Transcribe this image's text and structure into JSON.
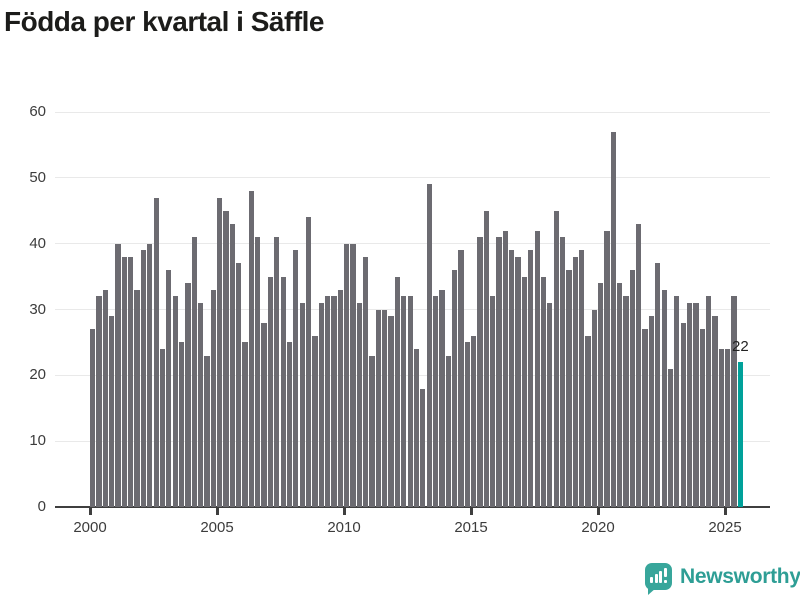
{
  "title": "Födda per kvartal i Säffle",
  "branding": {
    "logo_text": "Newsworthy"
  },
  "colors": {
    "bar": "#6c6b71",
    "highlight": "#00a19a",
    "grid": "#e9e9e9",
    "axis": "#3f3f3f",
    "tick_text": "#3c3c3c",
    "logo_teal": "#2e9e95"
  },
  "chart_data": {
    "type": "bar",
    "title": "Födda per kvartal i Säffle",
    "start_period": "2000-Q1",
    "end_period": "2025-Q3",
    "values": [
      27,
      32,
      33,
      29,
      40,
      38,
      38,
      33,
      39,
      40,
      47,
      24,
      36,
      32,
      25,
      34,
      41,
      31,
      23,
      33,
      47,
      45,
      43,
      37,
      25,
      48,
      41,
      28,
      35,
      41,
      35,
      25,
      39,
      31,
      44,
      26,
      31,
      32,
      32,
      33,
      40,
      40,
      31,
      38,
      23,
      30,
      30,
      29,
      35,
      32,
      32,
      24,
      18,
      49,
      32,
      33,
      23,
      36,
      39,
      25,
      26,
      41,
      45,
      32,
      41,
      42,
      39,
      38,
      35,
      39,
      42,
      35,
      31,
      45,
      41,
      36,
      38,
      39,
      26,
      30,
      34,
      42,
      57,
      34,
      32,
      36,
      43,
      27,
      29,
      37,
      33,
      21,
      32,
      28,
      31,
      31,
      27,
      32,
      29,
      24,
      24,
      32,
      22
    ],
    "highlight_last_bar": {
      "value": 22,
      "label": "22"
    },
    "x_tick_labels": [
      "2000",
      "2005",
      "2010",
      "2015",
      "2020",
      "2025"
    ],
    "y_tick_labels": [
      "0",
      "10",
      "20",
      "30",
      "40",
      "50",
      "60"
    ],
    "ylim": [
      0,
      60
    ],
    "grid": true,
    "legend": "none"
  }
}
